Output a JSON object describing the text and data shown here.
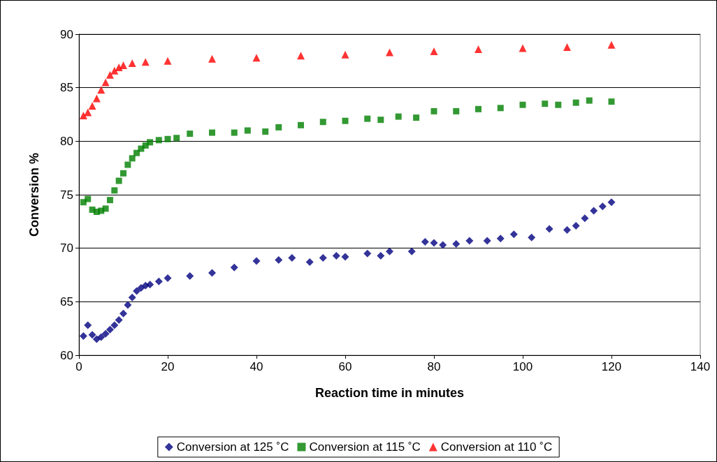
{
  "chart_data": {
    "type": "scatter",
    "xlabel": "Reaction time in minutes",
    "ylabel": "Conversion %",
    "xlim": [
      0,
      140
    ],
    "xticks": [
      0,
      20,
      40,
      60,
      80,
      100,
      120,
      140
    ],
    "ylim": [
      60,
      90
    ],
    "yticks": [
      60,
      65,
      70,
      75,
      80,
      85,
      90
    ],
    "grid": "y",
    "legend": "bottom",
    "series": [
      {
        "name": "Conversion at 125 ˚C",
        "color": "#000080",
        "marker": "diamond",
        "x": [
          1,
          2,
          3,
          4,
          5,
          6,
          7,
          8,
          9,
          10,
          11,
          12,
          13,
          14,
          15,
          16,
          18,
          20,
          25,
          30,
          35,
          40,
          45,
          48,
          52,
          55,
          58,
          60,
          65,
          68,
          70,
          75,
          78,
          80,
          82,
          85,
          88,
          92,
          95,
          98,
          102,
          106,
          110,
          112,
          114,
          116,
          118,
          120
        ],
        "values": [
          61.8,
          62.8,
          61.9,
          61.5,
          61.7,
          62.0,
          62.4,
          62.8,
          63.3,
          63.9,
          64.7,
          65.4,
          66.0,
          66.3,
          66.5,
          66.6,
          66.9,
          67.2,
          67.4,
          67.7,
          68.2,
          68.8,
          68.9,
          69.1,
          68.7,
          69.1,
          69.3,
          69.2,
          69.5,
          69.3,
          69.7,
          69.7,
          70.6,
          70.5,
          70.3,
          70.4,
          70.7,
          70.7,
          70.9,
          71.3,
          71.0,
          71.8,
          71.7,
          72.1,
          72.8,
          73.5,
          73.9,
          74.3
        ]
      },
      {
        "name": "Conversion at 115 ˚C",
        "color": "#008000",
        "marker": "square",
        "x": [
          1,
          2,
          3,
          4,
          5,
          6,
          7,
          8,
          9,
          10,
          11,
          12,
          13,
          14,
          15,
          16,
          18,
          20,
          22,
          25,
          30,
          35,
          38,
          42,
          45,
          50,
          55,
          60,
          65,
          68,
          72,
          76,
          80,
          85,
          90,
          95,
          100,
          105,
          108,
          112,
          115,
          120
        ],
        "values": [
          74.3,
          74.6,
          73.6,
          73.4,
          73.5,
          73.7,
          74.5,
          75.4,
          76.3,
          77.0,
          77.8,
          78.4,
          78.9,
          79.3,
          79.6,
          79.9,
          80.1,
          80.2,
          80.3,
          80.7,
          80.8,
          80.8,
          81.0,
          80.9,
          81.3,
          81.5,
          81.8,
          81.9,
          82.1,
          82.0,
          82.3,
          82.2,
          82.8,
          82.8,
          83.0,
          83.1,
          83.4,
          83.5,
          83.4,
          83.6,
          83.8,
          83.7
        ]
      },
      {
        "name": "Conversion at 110 ˚C",
        "color": "#ff0000",
        "marker": "triangle",
        "x": [
          1,
          2,
          3,
          4,
          5,
          6,
          7,
          8,
          9,
          10,
          12,
          15,
          20,
          30,
          40,
          50,
          60,
          70,
          80,
          90,
          100,
          110,
          120
        ],
        "values": [
          82.4,
          82.7,
          83.3,
          84.0,
          84.8,
          85.5,
          86.2,
          86.6,
          86.9,
          87.1,
          87.3,
          87.4,
          87.5,
          87.7,
          87.8,
          88.0,
          88.1,
          88.3,
          88.4,
          88.6,
          88.7,
          88.8,
          89.0
        ]
      }
    ]
  }
}
